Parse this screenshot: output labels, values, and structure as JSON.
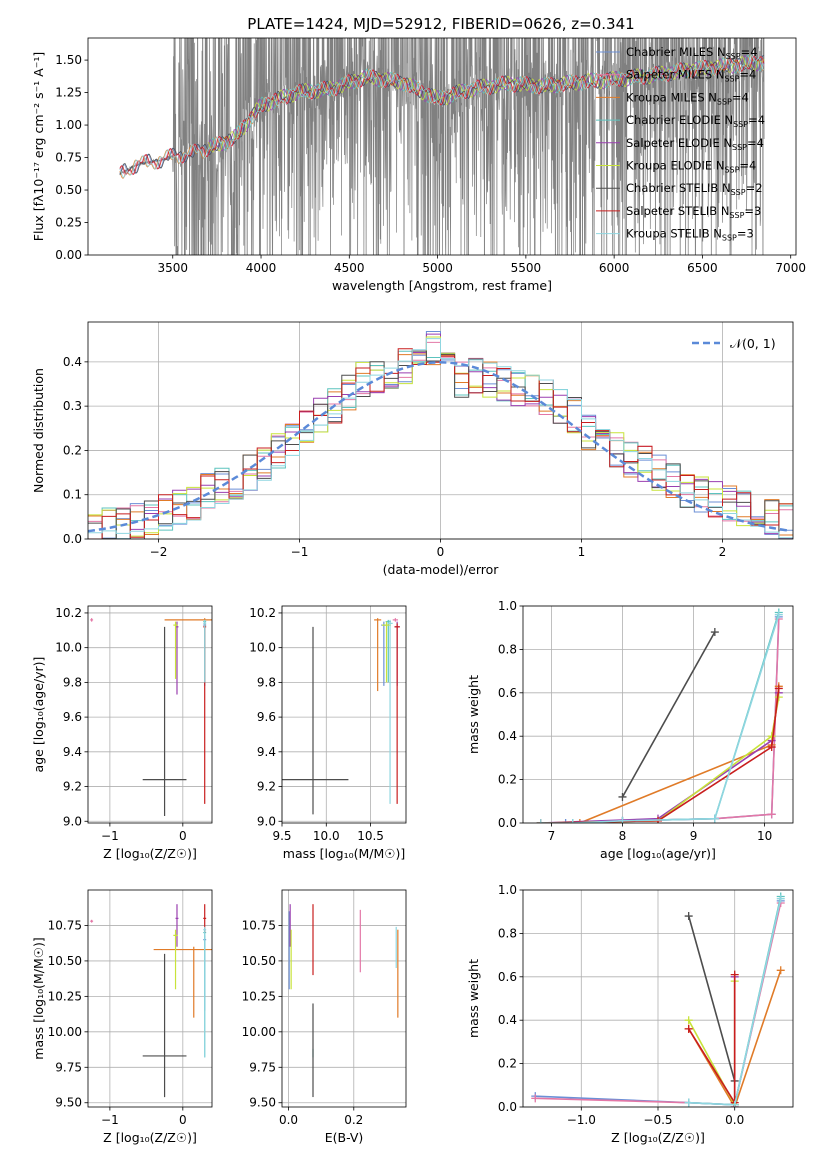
{
  "figure": {
    "title": "PLATE=1424, MJD=52912, FIBERID=0626, z=0.341"
  },
  "colors": {
    "c0": "#6b8fd6",
    "c1": "#e377a6",
    "c2": "#e07b28",
    "c3": "#5cc3be",
    "c4": "#9a3fb0",
    "c5": "#c8e33a",
    "c6": "#4d4d4d",
    "c7": "#c81e1e",
    "c8": "#8fd6e0",
    "gray": "#808080",
    "normal": "#5b8ad8"
  },
  "models": [
    {
      "name": "Chabrier MILES",
      "nssp": "4",
      "color": "#6b8fd6"
    },
    {
      "name": "Salpeter MILES",
      "nssp": "4",
      "color": "#e377a6"
    },
    {
      "name": "Kroupa MILES",
      "nssp": "4",
      "color": "#e07b28"
    },
    {
      "name": "Chabrier ELODIE",
      "nssp": "4",
      "color": "#5cc3be"
    },
    {
      "name": "Salpeter ELODIE",
      "nssp": "4",
      "color": "#9a3fb0"
    },
    {
      "name": "Kroupa ELODIE",
      "nssp": "4",
      "color": "#c8e33a"
    },
    {
      "name": "Chabrier STELIB",
      "nssp": "2",
      "color": "#4d4d4d"
    },
    {
      "name": "Salpeter STELIB",
      "nssp": "3",
      "color": "#c81e1e"
    },
    {
      "name": "Kroupa STELIB",
      "nssp": "3",
      "color": "#8fd6e0"
    }
  ],
  "chart_data": [
    {
      "id": "spectrum",
      "type": "line",
      "xlabel": "wavelength [Angstrom, rest frame]",
      "ylabel": "Flux [f$_\\lambda$10$^{-17}$ erg cm$^{-2}$ s$^{-1}$ A$^{-1}$]",
      "xlim": [
        3020,
        7030
      ],
      "ylim": [
        0,
        1.67
      ],
      "xticks": [
        3500,
        4000,
        4500,
        5000,
        5500,
        6000,
        6500,
        7000
      ],
      "yticks": [
        0.0,
        0.25,
        0.5,
        0.75,
        1.0,
        1.25,
        1.5
      ],
      "data_points": [
        [
          3200,
          0.62
        ],
        [
          3300,
          0.7
        ],
        [
          3400,
          0.72
        ],
        [
          3500,
          0.76
        ],
        [
          3600,
          0.78
        ],
        [
          3700,
          0.82
        ],
        [
          3850,
          0.9
        ],
        [
          4000,
          1.15
        ],
        [
          4100,
          1.2
        ],
        [
          4200,
          1.25
        ],
        [
          4400,
          1.28
        ],
        [
          4600,
          1.37
        ],
        [
          4800,
          1.33
        ],
        [
          5000,
          1.2
        ],
        [
          5200,
          1.28
        ],
        [
          5400,
          1.32
        ],
        [
          5600,
          1.3
        ],
        [
          5800,
          1.33
        ],
        [
          6000,
          1.35
        ],
        [
          6200,
          1.38
        ],
        [
          6400,
          1.42
        ],
        [
          6600,
          1.45
        ],
        [
          6800,
          1.48
        ]
      ],
      "data_range": [
        3200,
        6850
      ],
      "legend_position": "upper right"
    },
    {
      "id": "residuals",
      "type": "step",
      "xlabel": "(data-model)/error",
      "ylabel": "Normed distribution",
      "xlim": [
        -2.5,
        2.5
      ],
      "ylim": [
        0,
        0.49
      ],
      "xticks": [
        -2,
        -1,
        0,
        1,
        2
      ],
      "yticks": [
        0.0,
        0.1,
        0.2,
        0.3,
        0.4
      ],
      "bins": [
        -2.5,
        -2.4,
        -2.3,
        -2.2,
        -2.1,
        -2.0,
        -1.9,
        -1.8,
        -1.7,
        -1.6,
        -1.5,
        -1.4,
        -1.3,
        -1.2,
        -1.1,
        -1.0,
        -0.9,
        -0.8,
        -0.7,
        -0.6,
        -0.5,
        -0.4,
        -0.3,
        -0.2,
        -0.1,
        0.0,
        0.1,
        0.2,
        0.3,
        0.4,
        0.5,
        0.6,
        0.7,
        0.8,
        0.9,
        1.0,
        1.1,
        1.2,
        1.3,
        1.4,
        1.5,
        1.6,
        1.7,
        1.8,
        1.9,
        2.0,
        2.1,
        2.2,
        2.3,
        2.4,
        2.5
      ],
      "hist": [
        0.02,
        0.03,
        0.03,
        0.04,
        0.05,
        0.06,
        0.07,
        0.08,
        0.11,
        0.12,
        0.13,
        0.15,
        0.17,
        0.2,
        0.22,
        0.25,
        0.28,
        0.3,
        0.33,
        0.36,
        0.37,
        0.38,
        0.39,
        0.41,
        0.43,
        0.38,
        0.36,
        0.37,
        0.36,
        0.35,
        0.34,
        0.33,
        0.32,
        0.3,
        0.28,
        0.24,
        0.22,
        0.2,
        0.18,
        0.17,
        0.15,
        0.13,
        0.11,
        0.1,
        0.09,
        0.08,
        0.07,
        0.06,
        0.05,
        0.04
      ],
      "normal_label": "𝒩(0, 1)",
      "legend_position": "upper right"
    },
    {
      "id": "age-vs-Z",
      "type": "errorbar",
      "xlabel": "Z [log$_{10}$(Z/Z$_\\odot$)]",
      "ylabel": "age  [log$_{10}$(age/yr)]",
      "xlim": [
        -1.3,
        0.4
      ],
      "ylim": [
        8.99,
        10.24
      ],
      "xticks": [
        -1,
        0
      ],
      "yticks": [
        9.0,
        9.2,
        9.4,
        9.6,
        9.8,
        10.0,
        10.2
      ]
    },
    {
      "id": "age-vs-mass",
      "type": "errorbar",
      "xlabel": "mass [log$_{10}$(M/M$_\\odot$)]",
      "ylabel": "",
      "xlim": [
        9.5,
        10.9
      ],
      "ylim": [
        8.99,
        10.24
      ],
      "xticks": [
        9.5,
        10.0,
        10.5
      ],
      "yticks": [
        9.0,
        9.2,
        9.4,
        9.6,
        9.8,
        10.0,
        10.2
      ]
    },
    {
      "id": "mass-weight-vs-age",
      "type": "line",
      "xlabel": "age  [log$_{10}$(age/yr)]",
      "ylabel": "mass weight",
      "xlim": [
        6.6,
        10.4
      ],
      "ylim": [
        0,
        1.0
      ],
      "xticks": [
        7,
        8,
        9,
        10
      ],
      "yticks": [
        0.0,
        0.2,
        0.4,
        0.6,
        0.8,
        1.0
      ]
    },
    {
      "id": "mass-vs-Z",
      "type": "errorbar",
      "xlabel": "Z [log$_{10}$(Z/Z$_\\odot$)]",
      "ylabel": "mass [log$_{10}$(M/M$_\\odot$)]",
      "xlim": [
        -1.3,
        0.4
      ],
      "ylim": [
        9.47,
        11.0
      ],
      "xticks": [
        -1,
        0
      ],
      "yticks": [
        9.5,
        9.75,
        10.0,
        10.25,
        10.5,
        10.75
      ]
    },
    {
      "id": "mass-vs-ebv",
      "type": "errorbar",
      "xlabel": "E(B-V)",
      "ylabel": "",
      "xlim": [
        -0.02,
        0.36
      ],
      "ylim": [
        9.47,
        11.0
      ],
      "xticks": [
        0.0,
        0.2
      ],
      "yticks": [
        9.5,
        9.75,
        10.0,
        10.25,
        10.5,
        10.75
      ]
    },
    {
      "id": "mass-weight-vs-Z",
      "type": "line",
      "xlabel": "Z [log$_{10}$(Z/Z$_\\odot$)]",
      "ylabel": "mass weight",
      "xlim": [
        -1.38,
        0.38
      ],
      "ylim": [
        0,
        1.0
      ],
      "xticks": [
        -1.0,
        -0.5,
        0.0
      ],
      "yticks": [
        0.0,
        0.2,
        0.4,
        0.6,
        0.8,
        1.0
      ]
    }
  ],
  "errorbars": {
    "age_Z": [
      {
        "m": 0,
        "x": 0.3,
        "xerr": 0.02,
        "y": 10.13,
        "ylo": 9.78,
        "yhi": 10.15
      },
      {
        "m": 1,
        "x": -1.25,
        "xerr": 0.02,
        "y": 10.16,
        "ylo": 10.15,
        "yhi": 10.17
      },
      {
        "m": 2,
        "x": 0.3,
        "xerr": 0.55,
        "y": 10.16,
        "ylo": 9.8,
        "yhi": 10.17
      },
      {
        "m": 3,
        "x": 0.3,
        "xerr": 0.02,
        "y": 10.15,
        "ylo": 9.8,
        "yhi": 10.16
      },
      {
        "m": 4,
        "x": -0.08,
        "xerr": 0.02,
        "y": 10.12,
        "ylo": 9.73,
        "yhi": 10.15
      },
      {
        "m": 5,
        "x": -0.1,
        "xerr": 0.03,
        "y": 10.13,
        "ylo": 9.82,
        "yhi": 10.15
      },
      {
        "m": 6,
        "x": -0.25,
        "xerr": 0.3,
        "y": 9.24,
        "ylo": 9.03,
        "yhi": 10.12
      },
      {
        "m": 7,
        "x": 0.3,
        "xerr": 0.02,
        "y": 10.12,
        "ylo": 9.1,
        "yhi": 10.14
      },
      {
        "m": 8,
        "x": 0.3,
        "xerr": 0.02,
        "y": 10.14,
        "ylo": 9.8,
        "yhi": 10.16
      }
    ],
    "age_mass": [
      {
        "m": 0,
        "x": 10.65,
        "xerr": 0.03,
        "y": 10.13,
        "ylo": 9.78,
        "yhi": 10.15
      },
      {
        "m": 1,
        "x": 10.78,
        "xerr": 0.03,
        "y": 10.16,
        "ylo": 10.15,
        "yhi": 10.17
      },
      {
        "m": 2,
        "x": 10.58,
        "xerr": 0.04,
        "y": 10.16,
        "ylo": 9.75,
        "yhi": 10.17
      },
      {
        "m": 3,
        "x": 10.7,
        "xerr": 0.03,
        "y": 10.15,
        "ylo": 9.8,
        "yhi": 10.16
      },
      {
        "m": 4,
        "x": 10.8,
        "xerr": 0.03,
        "y": 10.12,
        "ylo": 9.78,
        "yhi": 10.15
      },
      {
        "m": 5,
        "x": 10.68,
        "xerr": 0.05,
        "y": 10.13,
        "ylo": 9.8,
        "yhi": 10.15
      },
      {
        "m": 6,
        "x": 9.85,
        "xerr": 0.4,
        "y": 9.24,
        "ylo": 9.04,
        "yhi": 10.12
      },
      {
        "m": 7,
        "x": 10.8,
        "xerr": 0.03,
        "y": 10.12,
        "ylo": 9.1,
        "yhi": 10.14
      },
      {
        "m": 8,
        "x": 10.72,
        "xerr": 0.03,
        "y": 10.14,
        "ylo": 9.1,
        "yhi": 10.16
      }
    ],
    "mass_Z": [
      {
        "m": 0,
        "x": 0.3,
        "xerr": 0.02,
        "y": 10.65,
        "ylo": 10.15,
        "yhi": 10.68
      },
      {
        "m": 1,
        "x": -1.25,
        "xerr": 0.02,
        "y": 10.78,
        "ylo": 10.77,
        "yhi": 10.79
      },
      {
        "m": 2,
        "x": 0.15,
        "xerr": 0.55,
        "y": 10.58,
        "ylo": 10.1,
        "yhi": 10.6
      },
      {
        "m": 3,
        "x": 0.3,
        "xerr": 0.02,
        "y": 10.7,
        "ylo": 9.82,
        "yhi": 10.72
      },
      {
        "m": 4,
        "x": -0.08,
        "xerr": 0.02,
        "y": 10.8,
        "ylo": 10.6,
        "yhi": 10.9
      },
      {
        "m": 5,
        "x": -0.1,
        "xerr": 0.03,
        "y": 10.68,
        "ylo": 10.3,
        "yhi": 10.72
      },
      {
        "m": 6,
        "x": -0.25,
        "xerr": 0.3,
        "y": 9.83,
        "ylo": 9.54,
        "yhi": 10.55
      },
      {
        "m": 7,
        "x": 0.3,
        "xerr": 0.02,
        "y": 10.8,
        "ylo": 10.7,
        "yhi": 10.9
      },
      {
        "m": 8,
        "x": 0.3,
        "xerr": 0.02,
        "y": 10.72,
        "ylo": 9.82,
        "yhi": 10.74
      }
    ],
    "mass_ebv": [
      {
        "m": 0,
        "x": 0.002,
        "y": 10.65,
        "ylo": 10.3,
        "yhi": 10.85
      },
      {
        "m": 1,
        "x": 0.22,
        "y": 10.7,
        "ylo": 10.42,
        "yhi": 10.86
      },
      {
        "m": 2,
        "x": 0.335,
        "y": 10.4,
        "ylo": 10.1,
        "yhi": 10.72
      },
      {
        "m": 3,
        "x": 0.075,
        "y": 9.85,
        "ylo": 9.82,
        "yhi": 9.88
      },
      {
        "m": 4,
        "x": 0.005,
        "y": 10.8,
        "ylo": 10.6,
        "yhi": 10.9
      },
      {
        "m": 5,
        "x": 0.008,
        "y": 10.6,
        "ylo": 10.3,
        "yhi": 10.72
      },
      {
        "m": 6,
        "x": 0.075,
        "y": 9.8,
        "ylo": 9.54,
        "yhi": 10.2
      },
      {
        "m": 7,
        "x": 0.075,
        "y": 10.8,
        "ylo": 10.4,
        "yhi": 10.9
      },
      {
        "m": 8,
        "x": 0.33,
        "y": 10.72,
        "ylo": 10.45,
        "yhi": 10.74
      }
    ]
  },
  "weights_vs_age": [
    {
      "m": 0,
      "pts": [
        [
          6.85,
          0.0
        ],
        [
          7.2,
          0.0
        ],
        [
          8.0,
          0.01
        ],
        [
          9.3,
          0.02
        ],
        [
          10.1,
          0.04
        ],
        [
          10.2,
          0.95
        ]
      ]
    },
    {
      "m": 1,
      "pts": [
        [
          6.85,
          0.0
        ],
        [
          7.3,
          0.0
        ],
        [
          8.0,
          0.01
        ],
        [
          9.3,
          0.02
        ],
        [
          10.1,
          0.04
        ],
        [
          10.2,
          0.94
        ]
      ]
    },
    {
      "m": 2,
      "pts": [
        [
          6.85,
          0.0
        ],
        [
          7.4,
          0.0
        ],
        [
          10.1,
          0.36
        ],
        [
          10.2,
          0.63
        ]
      ]
    },
    {
      "m": 3,
      "pts": [
        [
          6.85,
          0.0
        ],
        [
          7.3,
          0.0
        ],
        [
          8.0,
          0.01
        ],
        [
          9.3,
          0.02
        ],
        [
          10.2,
          0.97
        ]
      ]
    },
    {
      "m": 4,
      "pts": [
        [
          6.85,
          0.0
        ],
        [
          8.5,
          0.02
        ],
        [
          10.1,
          0.38
        ],
        [
          10.2,
          0.6
        ]
      ]
    },
    {
      "m": 5,
      "pts": [
        [
          6.85,
          0.0
        ],
        [
          8.5,
          0.01
        ],
        [
          10.1,
          0.4
        ],
        [
          10.2,
          0.58
        ]
      ]
    },
    {
      "m": 6,
      "pts": [
        [
          8.0,
          0.12
        ],
        [
          9.3,
          0.88
        ]
      ]
    },
    {
      "m": 7,
      "pts": [
        [
          6.85,
          0.0
        ],
        [
          8.5,
          0.01
        ],
        [
          10.1,
          0.35
        ],
        [
          10.2,
          0.62
        ]
      ]
    },
    {
      "m": 8,
      "pts": [
        [
          6.85,
          0.0
        ],
        [
          7.3,
          0.0
        ],
        [
          8.0,
          0.01
        ],
        [
          9.3,
          0.02
        ],
        [
          10.2,
          0.96
        ]
      ]
    }
  ],
  "weights_vs_Z": [
    {
      "m": 0,
      "pts": [
        [
          -1.3,
          0.05
        ],
        [
          -0.3,
          0.02
        ],
        [
          0.0,
          0.01
        ],
        [
          0.3,
          0.95
        ]
      ]
    },
    {
      "m": 1,
      "pts": [
        [
          -1.3,
          0.04
        ],
        [
          -0.3,
          0.02
        ],
        [
          0.0,
          0.01
        ],
        [
          0.3,
          0.94
        ]
      ]
    },
    {
      "m": 2,
      "pts": [
        [
          -0.3,
          0.36
        ],
        [
          0.0,
          0.0
        ],
        [
          0.3,
          0.63
        ]
      ]
    },
    {
      "m": 3,
      "pts": [
        [
          -0.3,
          0.02
        ],
        [
          0.0,
          0.01
        ],
        [
          0.3,
          0.97
        ]
      ]
    },
    {
      "m": 4,
      "pts": [
        [
          0.0,
          0.0
        ],
        [
          0.0,
          0.6
        ]
      ]
    },
    {
      "m": 5,
      "pts": [
        [
          -0.3,
          0.4
        ],
        [
          0.0,
          0.01
        ],
        [
          0.0,
          0.58
        ]
      ]
    },
    {
      "m": 6,
      "pts": [
        [
          -0.3,
          0.88
        ],
        [
          0.0,
          0.12
        ]
      ]
    },
    {
      "m": 7,
      "pts": [
        [
          -0.3,
          0.36
        ],
        [
          0.0,
          0.02
        ],
        [
          0.0,
          0.61
        ]
      ]
    },
    {
      "m": 8,
      "pts": [
        [
          -0.3,
          0.02
        ],
        [
          0.0,
          0.01
        ],
        [
          0.3,
          0.96
        ]
      ]
    }
  ]
}
